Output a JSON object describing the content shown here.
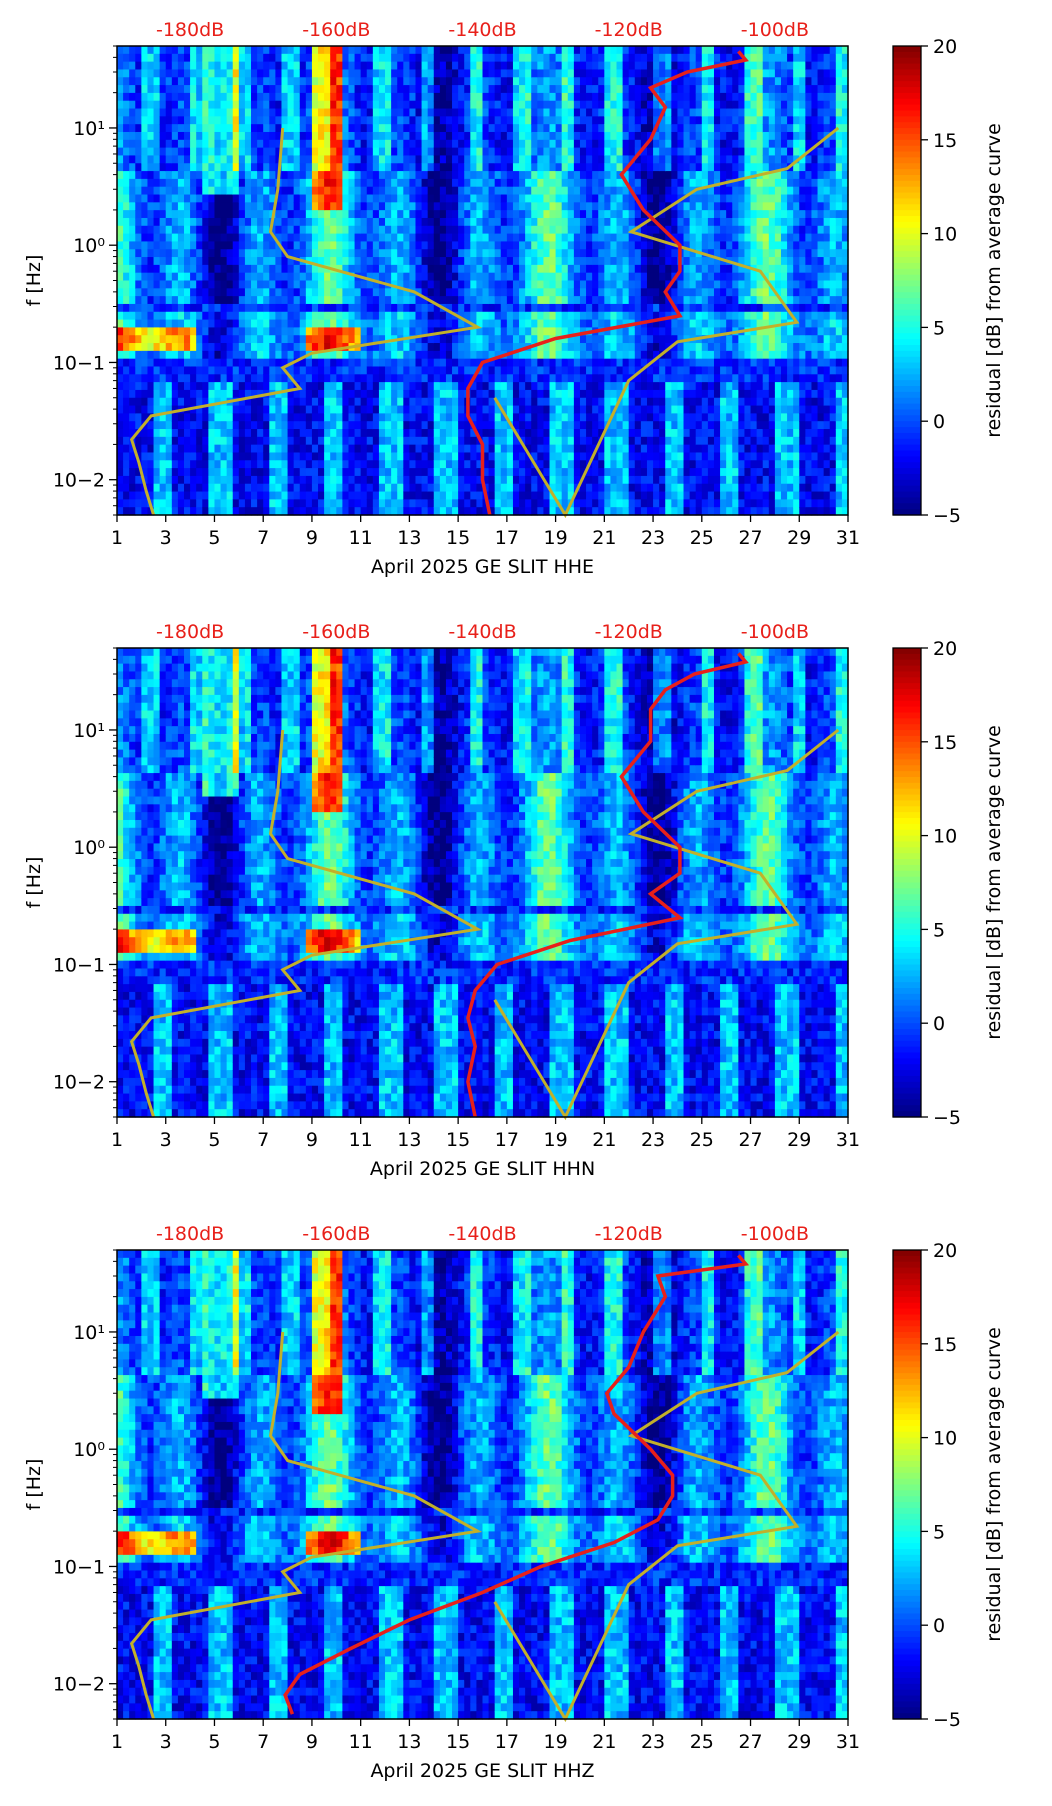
{
  "colors": {
    "cmap": [
      "#00007f",
      "#0000ff",
      "#007fff",
      "#00ffff",
      "#7fff7f",
      "#ffff00",
      "#ff7f00",
      "#ff0000",
      "#7f0000"
    ],
    "red_curve": "#e8201a",
    "olive_curve": "#c2b02a",
    "db_text": "#e8201a"
  },
  "chart_data": [
    {
      "type": "heatmap",
      "title": "",
      "xlabel": "April 2025 GE SLIT  HHE",
      "ylabel": "f [Hz]",
      "xlim": [
        1,
        31
      ],
      "ylim": [
        0.005,
        50
      ],
      "yscale": "log",
      "xticks": [
        "1",
        "3",
        "5",
        "7",
        "9",
        "11",
        "13",
        "15",
        "17",
        "19",
        "21",
        "23",
        "25",
        "27",
        "29",
        "31"
      ],
      "yticks": [
        "10−2",
        "10−1",
        "10⁰",
        "10¹"
      ],
      "top_axis_labels": [
        "-180dB",
        "-160dB",
        "-140dB",
        "-120dB",
        "-100dB"
      ],
      "top_axis_range_db": [
        -190,
        -90
      ],
      "colorbar": {
        "label": "residual [dB] from average curve",
        "range": [
          -5,
          20
        ],
        "ticks": [
          "20",
          "15",
          "10",
          "5",
          "0",
          "−5"
        ]
      },
      "red_curve_db": {
        "freq": [
          0.005,
          0.01,
          0.02,
          0.035,
          0.06,
          0.1,
          0.16,
          0.25,
          0.4,
          0.6,
          1.0,
          2.0,
          4.0,
          8.0,
          15,
          22,
          30,
          38,
          45
        ],
        "db": [
          -139,
          -140,
          -140,
          -142,
          -142,
          -140,
          -130,
          -113,
          -115,
          -113,
          -113,
          -118,
          -121,
          -117,
          -115,
          -117,
          -112,
          -104,
          -105
        ]
      },
      "olive_curve_day": {
        "freq": [
          0.005,
          0.008,
          0.014,
          0.022,
          0.035,
          0.06,
          0.09,
          0.12,
          0.2,
          0.4,
          0.8,
          1.3,
          3.0,
          10,
          0.05,
          0.005,
          0.07,
          0.15,
          0.22,
          0.6,
          1.3,
          3.0,
          4.5,
          10
        ],
        "day": [
          2.5,
          2.2,
          1.9,
          1.6,
          2.4,
          8.5,
          7.8,
          9.0,
          15.8,
          13.2,
          8.0,
          7.3,
          7.6,
          7.8,
          16.5,
          19.4,
          22.0,
          24.0,
          28.9,
          27.4,
          22.1,
          24.8,
          28.5,
          30.6
        ]
      }
    },
    {
      "type": "heatmap",
      "title": "",
      "xlabel": "April 2025 GE SLIT  HHN",
      "ylabel": "f [Hz]",
      "xlim": [
        1,
        31
      ],
      "ylim": [
        0.005,
        50
      ],
      "yscale": "log",
      "xticks": [
        "1",
        "3",
        "5",
        "7",
        "9",
        "11",
        "13",
        "15",
        "17",
        "19",
        "21",
        "23",
        "25",
        "27",
        "29",
        "31"
      ],
      "yticks": [
        "10−2",
        "10−1",
        "10⁰",
        "10¹"
      ],
      "top_axis_labels": [
        "-180dB",
        "-160dB",
        "-140dB",
        "-120dB",
        "-100dB"
      ],
      "top_axis_range_db": [
        -190,
        -90
      ],
      "colorbar": {
        "label": "residual [dB] from average curve",
        "range": [
          -5,
          20
        ],
        "ticks": [
          "20",
          "15",
          "10",
          "5",
          "0",
          "−5"
        ]
      },
      "red_curve_db": {
        "freq": [
          0.005,
          0.01,
          0.02,
          0.035,
          0.06,
          0.1,
          0.16,
          0.25,
          0.4,
          0.6,
          1.0,
          2.0,
          4.0,
          8.0,
          15,
          22,
          30,
          38,
          45
        ],
        "db": [
          -141,
          -142,
          -141,
          -142,
          -141,
          -138,
          -128,
          -113,
          -117,
          -113,
          -113,
          -118,
          -121,
          -117,
          -117,
          -115,
          -111,
          -104,
          -105
        ]
      },
      "olive_curve_day": {
        "freq": [
          0.005,
          0.008,
          0.014,
          0.022,
          0.035,
          0.06,
          0.09,
          0.12,
          0.2,
          0.4,
          0.8,
          1.3,
          3.0,
          10,
          0.05,
          0.005,
          0.07,
          0.15,
          0.22,
          0.6,
          1.3,
          3.0,
          4.5,
          10
        ],
        "day": [
          2.5,
          2.2,
          1.9,
          1.6,
          2.4,
          8.5,
          7.8,
          9.0,
          15.8,
          13.2,
          8.0,
          7.3,
          7.6,
          7.8,
          16.5,
          19.4,
          22.0,
          24.0,
          28.9,
          27.4,
          22.1,
          24.8,
          28.5,
          30.6
        ]
      }
    },
    {
      "type": "heatmap",
      "title": "",
      "xlabel": "April 2025 GE SLIT  HHZ",
      "ylabel": "f [Hz]",
      "xlim": [
        1,
        31
      ],
      "ylim": [
        0.005,
        50
      ],
      "yscale": "log",
      "xticks": [
        "1",
        "3",
        "5",
        "7",
        "9",
        "11",
        "13",
        "15",
        "17",
        "19",
        "21",
        "23",
        "25",
        "27",
        "29",
        "31"
      ],
      "yticks": [
        "10−2",
        "10−1",
        "10⁰",
        "10¹"
      ],
      "top_axis_labels": [
        "-180dB",
        "-160dB",
        "-140dB",
        "-120dB",
        "-100dB"
      ],
      "top_axis_range_db": [
        -190,
        -90
      ],
      "colorbar": {
        "label": "residual [dB] from average curve",
        "range": [
          -5,
          20
        ],
        "ticks": [
          "20",
          "15",
          "10",
          "5",
          "0",
          "−5"
        ]
      },
      "red_curve_db": {
        "freq": [
          0.0055,
          0.008,
          0.012,
          0.02,
          0.035,
          0.06,
          0.1,
          0.16,
          0.25,
          0.4,
          0.6,
          1.0,
          2.0,
          3.0,
          5.0,
          10,
          20,
          30,
          38,
          45
        ],
        "db": [
          -166,
          -167,
          -165,
          -158,
          -150,
          -140,
          -132,
          -122,
          -116,
          -114,
          -114,
          -117,
          -122,
          -123,
          -120,
          -118,
          -115,
          -116,
          -104,
          -105
        ]
      },
      "olive_curve_day": {
        "freq": [
          0.005,
          0.008,
          0.014,
          0.022,
          0.035,
          0.06,
          0.09,
          0.12,
          0.2,
          0.4,
          0.8,
          1.3,
          3.0,
          10,
          0.05,
          0.005,
          0.07,
          0.15,
          0.22,
          0.6,
          1.3,
          3.0,
          4.5,
          10
        ],
        "day": [
          2.5,
          2.2,
          1.9,
          1.6,
          2.4,
          8.5,
          7.8,
          9.0,
          15.8,
          13.2,
          8.0,
          7.3,
          7.6,
          7.8,
          16.5,
          19.4,
          22.0,
          24.0,
          28.9,
          27.4,
          22.1,
          24.8,
          28.5,
          30.6
        ]
      }
    }
  ]
}
